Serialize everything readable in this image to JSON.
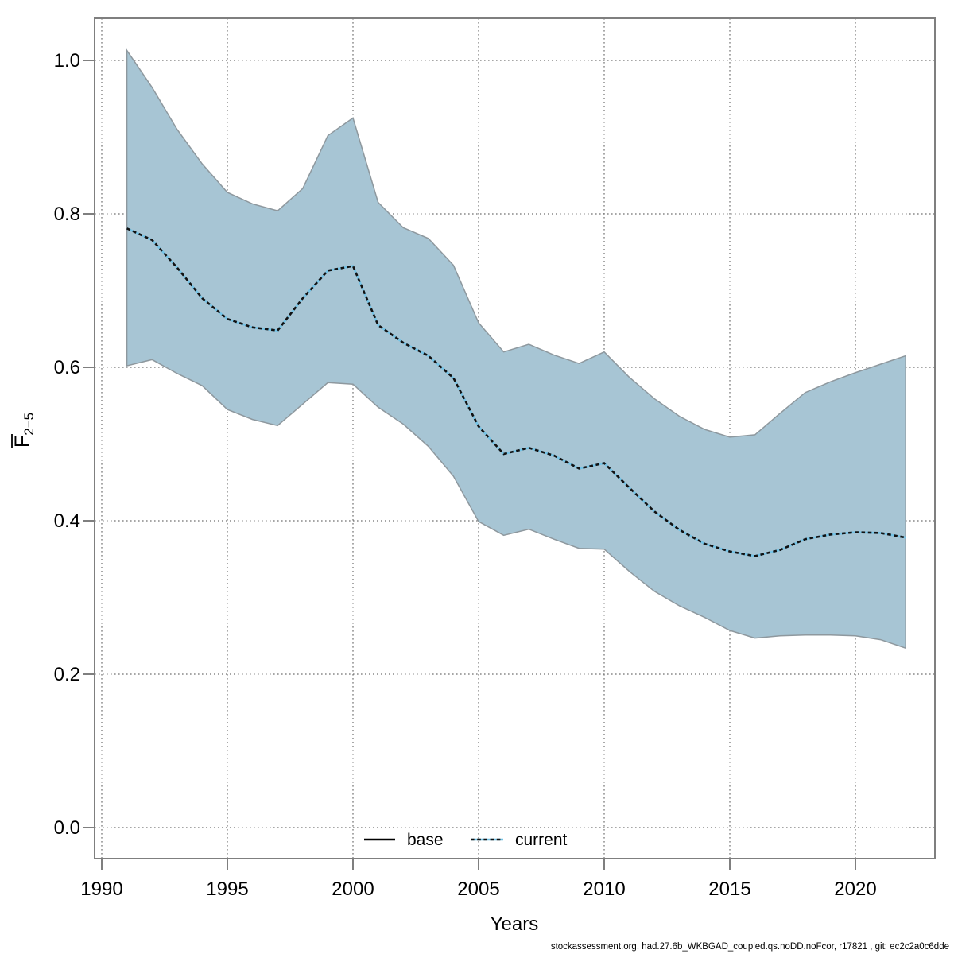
{
  "figure": {
    "footer": "stockassessment.org, had.27.6b_WKBGAD_coupled.qs.noDD.noFcor, r17821 , git: ec2c2a0c6dde"
  },
  "chart_data": {
    "type": "area",
    "title": "",
    "xlabel": "Years",
    "ylabel": "F̄2−5",
    "ylabel_main": "F",
    "ylabel_sub": "2−5",
    "x_ticks": [
      1990,
      1995,
      2000,
      2005,
      2010,
      2015,
      2020
    ],
    "y_ticks": [
      "0.0",
      "0.2",
      "0.4",
      "0.6",
      "0.8",
      "1.0"
    ],
    "xlim": [
      1989.7,
      2023.2
    ],
    "ylim": [
      -0.04,
      1.055
    ],
    "grid": "dotted",
    "legend_position": "bottom-center-inside",
    "legend": [
      {
        "label": "base",
        "style": "solid",
        "color": "#000000"
      },
      {
        "label": "current",
        "style": "dotted",
        "color": "#74c3e6"
      }
    ],
    "series": {
      "years": [
        1991,
        1992,
        1993,
        1994,
        1995,
        1996,
        1997,
        1998,
        1999,
        2000,
        2001,
        2002,
        2003,
        2004,
        2005,
        2006,
        2007,
        2008,
        2009,
        2010,
        2011,
        2012,
        2013,
        2014,
        2015,
        2016,
        2017,
        2018,
        2019,
        2020,
        2021,
        2022
      ],
      "current": [
        0.781,
        0.766,
        0.73,
        0.69,
        0.663,
        0.652,
        0.648,
        0.69,
        0.726,
        0.732,
        0.655,
        0.632,
        0.615,
        0.586,
        0.523,
        0.487,
        0.495,
        0.485,
        0.468,
        0.475,
        0.443,
        0.412,
        0.388,
        0.37,
        0.36,
        0.354,
        0.362,
        0.376,
        0.382,
        0.385,
        0.384,
        0.378
      ],
      "ci_upper": [
        1.013,
        0.965,
        0.91,
        0.865,
        0.828,
        0.813,
        0.804,
        0.833,
        0.902,
        0.925,
        0.815,
        0.782,
        0.768,
        0.733,
        0.658,
        0.62,
        0.63,
        0.616,
        0.605,
        0.62,
        0.587,
        0.559,
        0.536,
        0.519,
        0.509,
        0.512,
        0.54,
        0.567,
        0.581,
        0.593,
        0.604,
        0.615
      ],
      "ci_lower": [
        0.602,
        0.61,
        0.592,
        0.576,
        0.545,
        0.532,
        0.524,
        0.552,
        0.58,
        0.578,
        0.548,
        0.526,
        0.497,
        0.458,
        0.399,
        0.381,
        0.389,
        0.376,
        0.364,
        0.363,
        0.334,
        0.308,
        0.289,
        0.274,
        0.257,
        0.247,
        0.25,
        0.251,
        0.251,
        0.25,
        0.245,
        0.234
      ]
    },
    "colors": {
      "ribbon_fill": "#a7c5d4",
      "ribbon_edge": "#8e989e",
      "current_line": "#74c3e6",
      "current_dash": "#111111",
      "grid": "#707070",
      "frame": "#7f7f7f",
      "text": "#000000"
    }
  }
}
